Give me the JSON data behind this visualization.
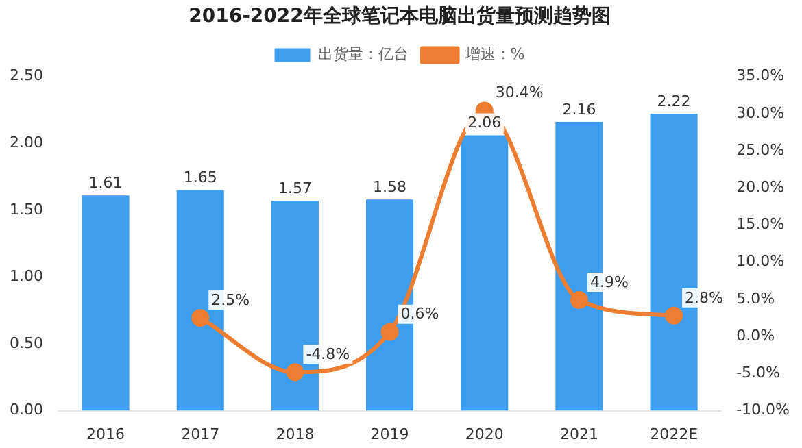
{
  "chart_data": {
    "type": "bar",
    "title": "2016-2022年全球笔记本电脑出货量预测趋势图",
    "categories": [
      "2016",
      "2017",
      "2018",
      "2019",
      "2020",
      "2021",
      "2022E"
    ],
    "series": [
      {
        "name": "出货量：亿台",
        "color": "#3d9ef0",
        "values": [
          1.61,
          1.65,
          1.57,
          1.58,
          2.06,
          2.16,
          2.22
        ],
        "value_labels": [
          "1.61",
          "1.65",
          "1.57",
          "1.58",
          "2.06",
          "2.16",
          "2.22"
        ]
      },
      {
        "name": "增速：%",
        "type": "line",
        "axis": "y2",
        "color": "#ed7d31",
        "values": [
          null,
          2.5,
          -4.8,
          0.6,
          30.4,
          4.9,
          2.8
        ],
        "value_labels": [
          null,
          "2.5%",
          "-4.8%",
          "0.6%",
          "30.4%",
          "4.9%",
          "2.8%"
        ]
      }
    ],
    "ylim": [
      0,
      2.5
    ],
    "yticks": [
      {
        "value": 0,
        "label": "0.00"
      },
      {
        "value": 0.5,
        "label": "0.50"
      },
      {
        "value": 1,
        "label": "1.00"
      },
      {
        "value": 1.5,
        "label": "1.50"
      },
      {
        "value": 2,
        "label": "2.00"
      },
      {
        "value": 2.5,
        "label": "2.50"
      }
    ],
    "y2lim": [
      -10,
      35
    ],
    "y2ticks": [
      {
        "value": -10,
        "label": "-10.0%"
      },
      {
        "value": -5,
        "label": "-5.0%"
      },
      {
        "value": 0,
        "label": "0.0%"
      },
      {
        "value": 5,
        "label": "5.0%"
      },
      {
        "value": 10,
        "label": "10.0%"
      },
      {
        "value": 15,
        "label": "15.0%"
      },
      {
        "value": 20,
        "label": "20.0%"
      },
      {
        "value": 25,
        "label": "25.0%"
      },
      {
        "value": 30,
        "label": "30.0%"
      },
      {
        "value": 35,
        "label": "35.0%"
      }
    ],
    "legend": "top",
    "marker": "circle"
  }
}
